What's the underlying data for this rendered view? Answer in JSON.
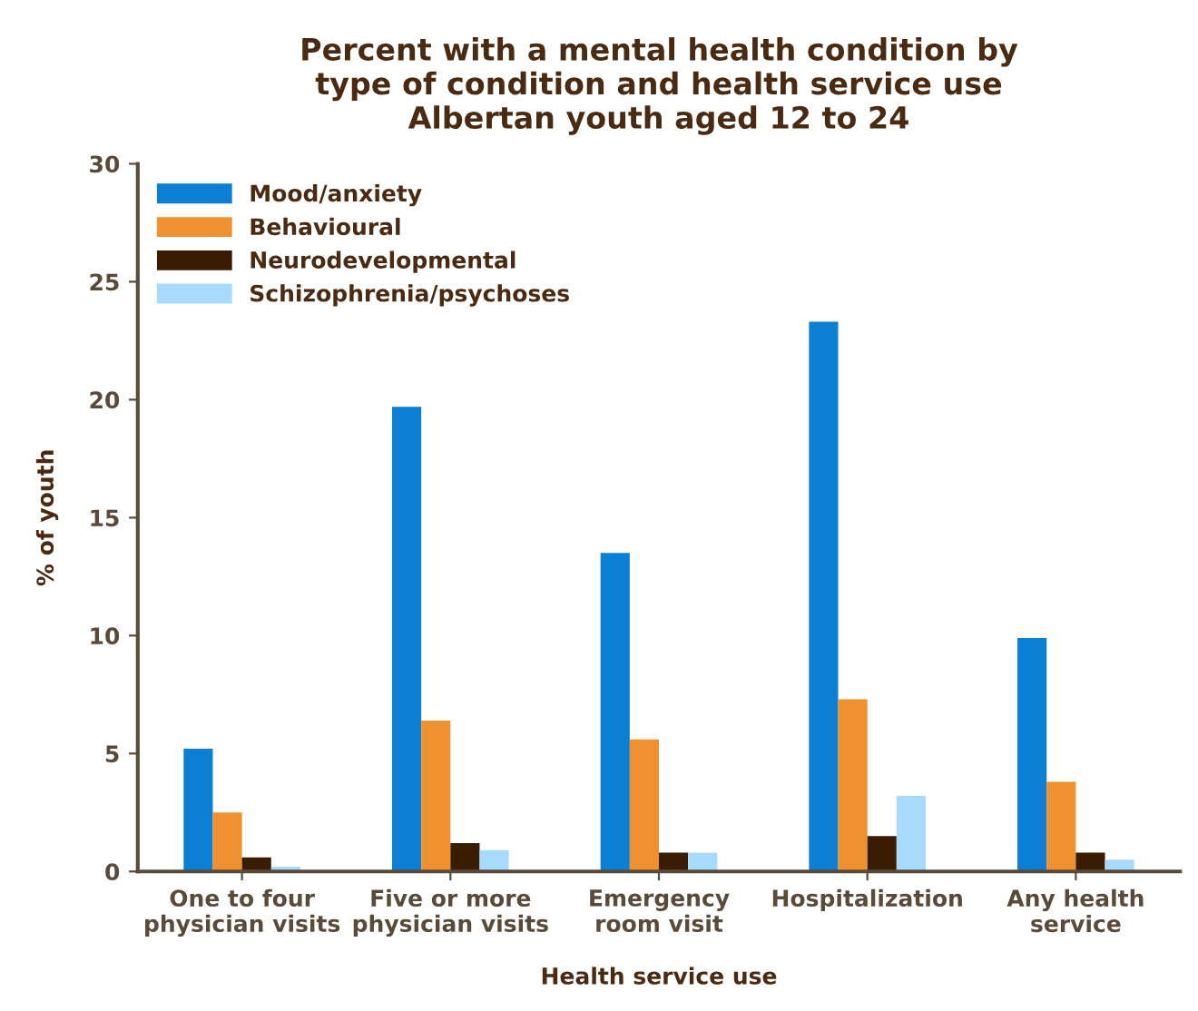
{
  "chart_data": {
    "type": "bar",
    "title": "Percent with a mental health condition by\ntype of condition and health service use\nAlbertan youth aged 12 to 24",
    "xlabel": "Health service use",
    "ylabel": "% of youth",
    "categories": [
      "One to four\nphysician visits",
      "Five or more\nphysician visits",
      "Emergency\nroom visit",
      "Hospitalization",
      "Any health\nservice"
    ],
    "series": [
      {
        "name": "Mood/anxiety",
        "color": "#0a7fd4",
        "values": [
          5.2,
          19.7,
          13.5,
          23.3,
          9.9
        ]
      },
      {
        "name": "Behavioural",
        "color": "#f0912f",
        "values": [
          2.5,
          6.4,
          5.6,
          7.3,
          3.8
        ]
      },
      {
        "name": "Neurodevelopmental",
        "color": "#3a1c00",
        "values": [
          0.6,
          1.2,
          0.8,
          1.5,
          0.8
        ]
      },
      {
        "name": "Schizophrenia/psychoses",
        "color": "#a6dbff",
        "values": [
          0.2,
          0.9,
          0.8,
          3.2,
          0.5
        ]
      }
    ],
    "ylim": [
      0,
      30
    ],
    "yticks": [
      0,
      5,
      10,
      15,
      20,
      25,
      30
    ],
    "grid": false,
    "legend": "top left"
  }
}
